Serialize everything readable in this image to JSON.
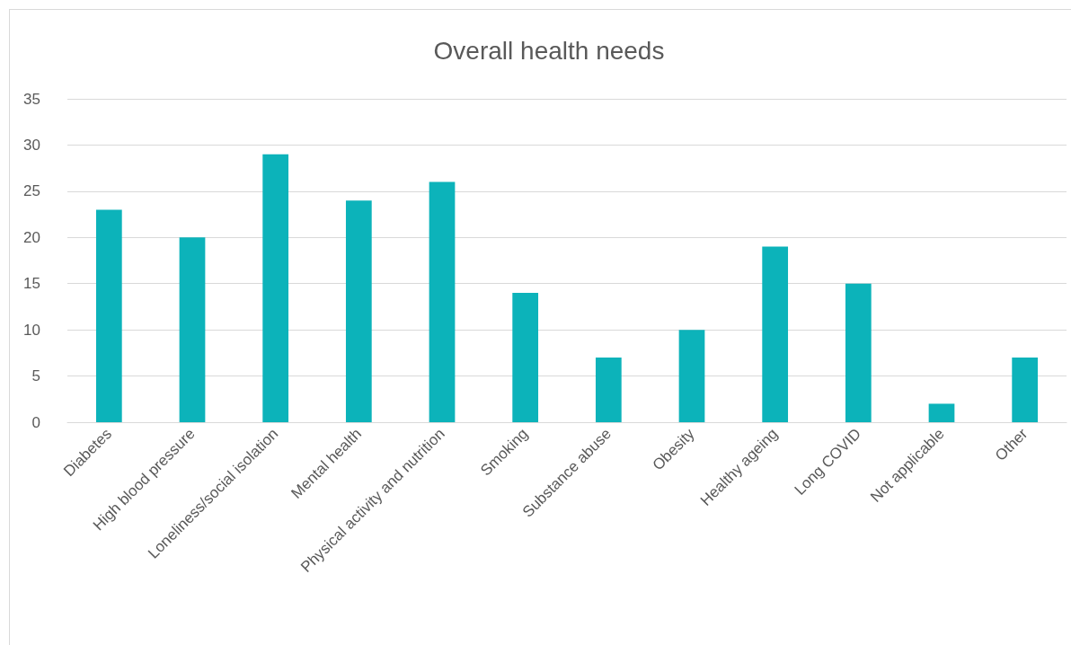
{
  "chart_data": {
    "type": "bar",
    "title": "Overall health needs",
    "categories": [
      "Diabetes",
      "High blood pressure",
      "Loneliness/social isolation",
      "Mental health",
      "Physical activity and nutrition",
      "Smoking",
      "Substance abuse",
      "Obesity",
      "Healthy ageing",
      "Long COVID",
      "Not applicable",
      "Other"
    ],
    "values": [
      23,
      20,
      29,
      24,
      26,
      14,
      7,
      10,
      19,
      15,
      2,
      7
    ],
    "color": "#0cb3ba",
    "ylim": [
      0,
      35
    ],
    "yticks": [
      0,
      5,
      10,
      15,
      20,
      25,
      30,
      35
    ],
    "grid": "y"
  }
}
